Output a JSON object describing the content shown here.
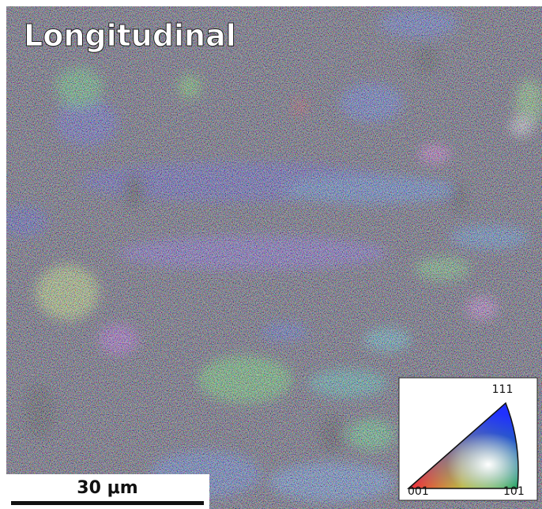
{
  "title": "Longitudinal",
  "scale_bar": {
    "label": "30 μm"
  },
  "legend": {
    "top": "111",
    "left": "001",
    "right": "101"
  }
}
